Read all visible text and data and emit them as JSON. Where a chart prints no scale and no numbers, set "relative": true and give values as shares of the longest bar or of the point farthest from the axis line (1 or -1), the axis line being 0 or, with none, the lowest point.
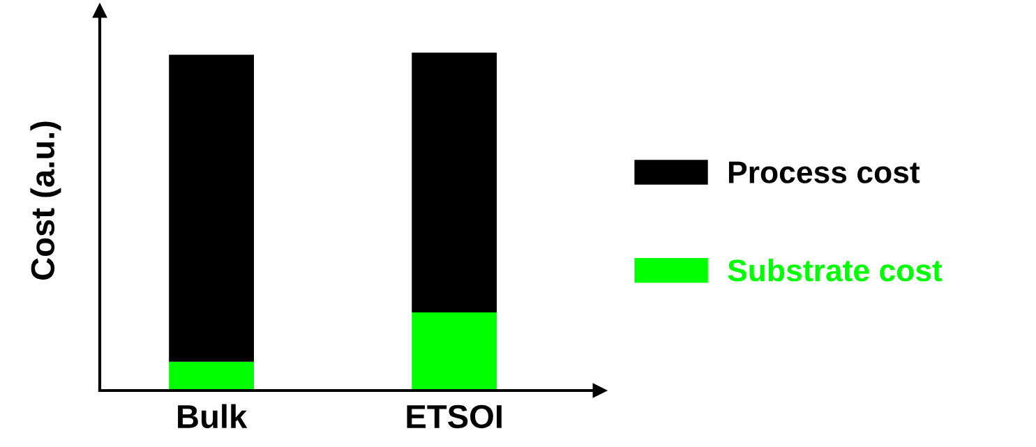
{
  "chart_data": {
    "type": "bar",
    "stacked": true,
    "relative": true,
    "ylabel": "Cost (a.u.)",
    "categories": [
      "Bulk",
      "ETSOI"
    ],
    "series": [
      {
        "name": "Substrate cost",
        "color": "#00ff00",
        "values": [
          0.085,
          0.231
        ]
      },
      {
        "name": "Process cost",
        "color": "#000000",
        "values": [
          0.909,
          0.769
        ]
      }
    ],
    "legend": "right"
  }
}
